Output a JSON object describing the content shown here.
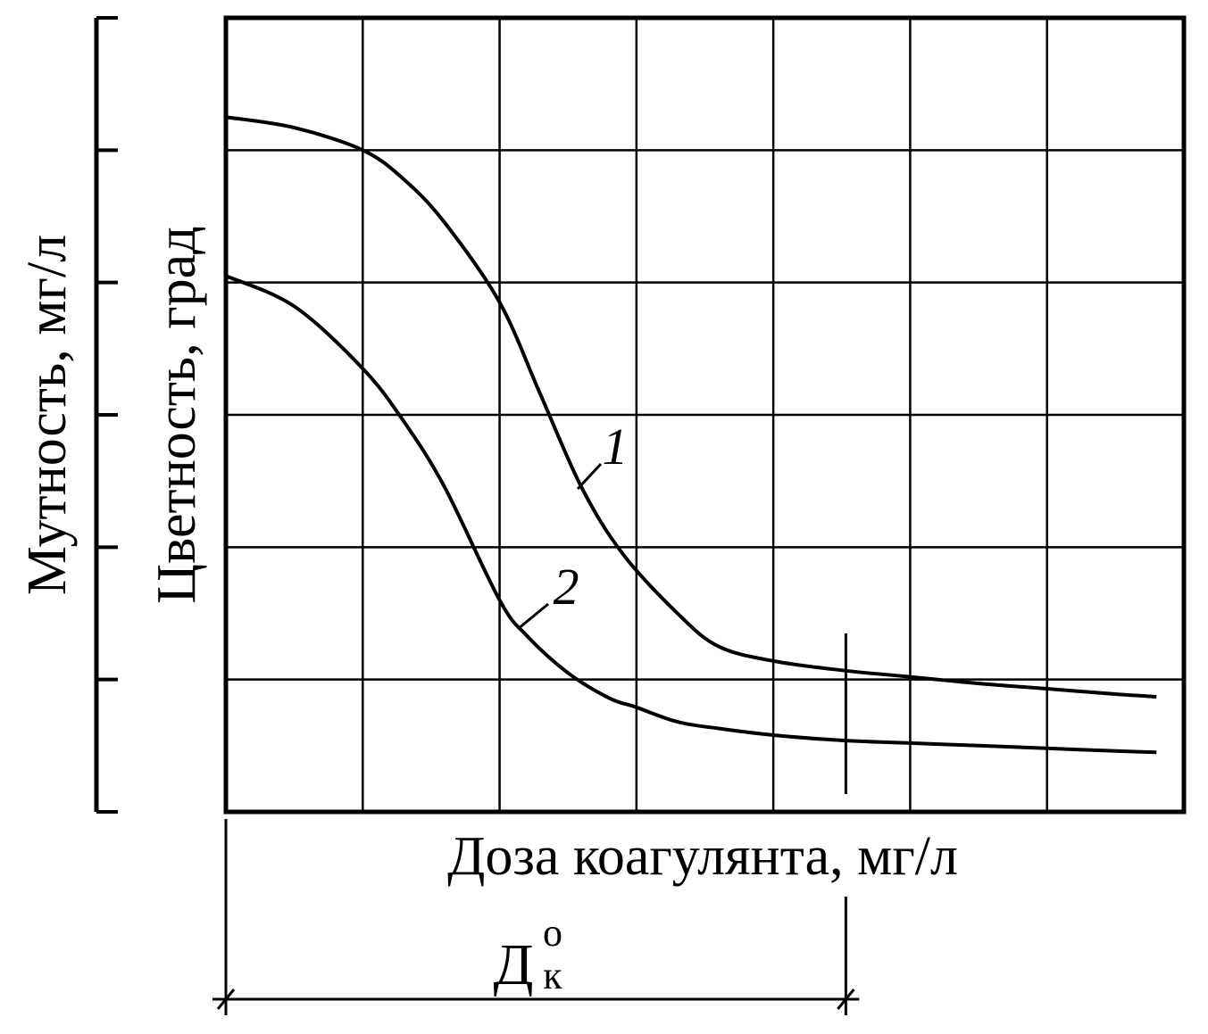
{
  "chart_data": {
    "type": "line",
    "xlabel": "Доза коагулянта, мг/л",
    "ylabel_outer": "Мутность, мг/л",
    "ylabel_inner": "Цветность, град",
    "xlim": [
      0,
      7
    ],
    "ylim": [
      0,
      6
    ],
    "grid": true,
    "x_ticks": [
      0,
      1,
      2,
      3,
      4,
      5,
      6,
      7
    ],
    "y_ticks": [
      0,
      1,
      2,
      3,
      4,
      5,
      6
    ],
    "outer_axis_ticks": [
      0,
      1,
      2,
      3,
      4,
      5,
      6
    ],
    "series": [
      {
        "name": "1",
        "x": [
          0,
          0.5,
          1.0,
          1.3,
          1.6,
          2.0,
          2.3,
          2.6,
          2.9,
          3.3,
          3.6,
          4.0,
          4.5,
          5.0,
          5.5,
          6.0,
          6.5,
          6.8
        ],
        "y": [
          5.25,
          5.17,
          5.0,
          4.78,
          4.45,
          3.85,
          3.15,
          2.45,
          1.95,
          1.5,
          1.25,
          1.14,
          1.07,
          1.02,
          0.97,
          0.93,
          0.89,
          0.87
        ]
      },
      {
        "name": "2",
        "x": [
          0,
          0.5,
          1.0,
          1.3,
          1.6,
          2.0,
          2.2,
          2.5,
          2.8,
          3.0,
          3.3,
          3.6,
          4.0,
          4.5,
          5.0,
          5.5,
          6.0,
          6.5,
          6.8
        ],
        "y": [
          4.05,
          3.82,
          3.35,
          2.95,
          2.45,
          1.6,
          1.33,
          1.05,
          0.86,
          0.79,
          0.68,
          0.63,
          0.58,
          0.54,
          0.52,
          0.5,
          0.48,
          0.46,
          0.45
        ]
      }
    ],
    "optimal_dose": {
      "x": 4.53,
      "label_main": "Д",
      "label_sup": "о",
      "label_sub": "к"
    }
  }
}
